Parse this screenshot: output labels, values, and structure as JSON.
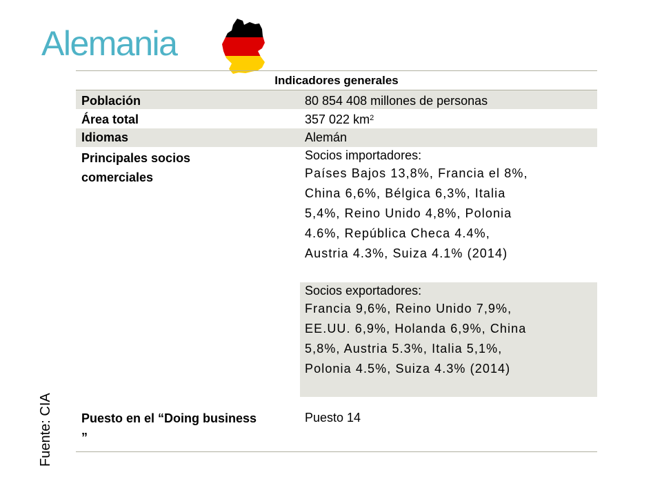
{
  "title": "Alemania",
  "source": "Fuente: CIA",
  "flag_icon": "germany-flag-map-icon",
  "colors": {
    "title": "#4fb3c7",
    "shade": "#e4e4de",
    "flag_black": "#000000",
    "flag_red": "#dd0000",
    "flag_gold": "#ffce00"
  },
  "table": {
    "header": "Indicadores generales",
    "rows": {
      "poblacion": {
        "label": "Población",
        "value": "80 854 408 millones de personas"
      },
      "area": {
        "label": "Área total",
        "value": "357 022 km",
        "sup": "2"
      },
      "idiomas": {
        "label": "Idiomas",
        "value": "Alemán"
      },
      "socios": {
        "label": "Principales socios comerciales",
        "import_title": "Socios importadores:",
        "import_lines": [
          "Países Bajos 13,8%, Francia el 8%,",
          "China 6,6%, Bélgica 6,3%, Italia",
          "5,4%, Reino Unido 4,8%, Polonia",
          "4.6%, República Checa 4.4%,",
          "Austria 4.3%, Suiza 4.1% (2014)"
        ],
        "export_title": "Socios exportadores:",
        "export_lines": [
          "Francia 9,6%, Reino Unido 7,9%,",
          "EE.UU. 6,9%, Holanda 6,9%, China",
          "5,8%, Austria 5.3%, Italia 5,1%,",
          "Polonia 4.5%, Suiza 4.3% (2014)"
        ]
      },
      "doing_business": {
        "label": "Puesto en el “Doing business ”",
        "value": "Puesto 14"
      }
    }
  }
}
